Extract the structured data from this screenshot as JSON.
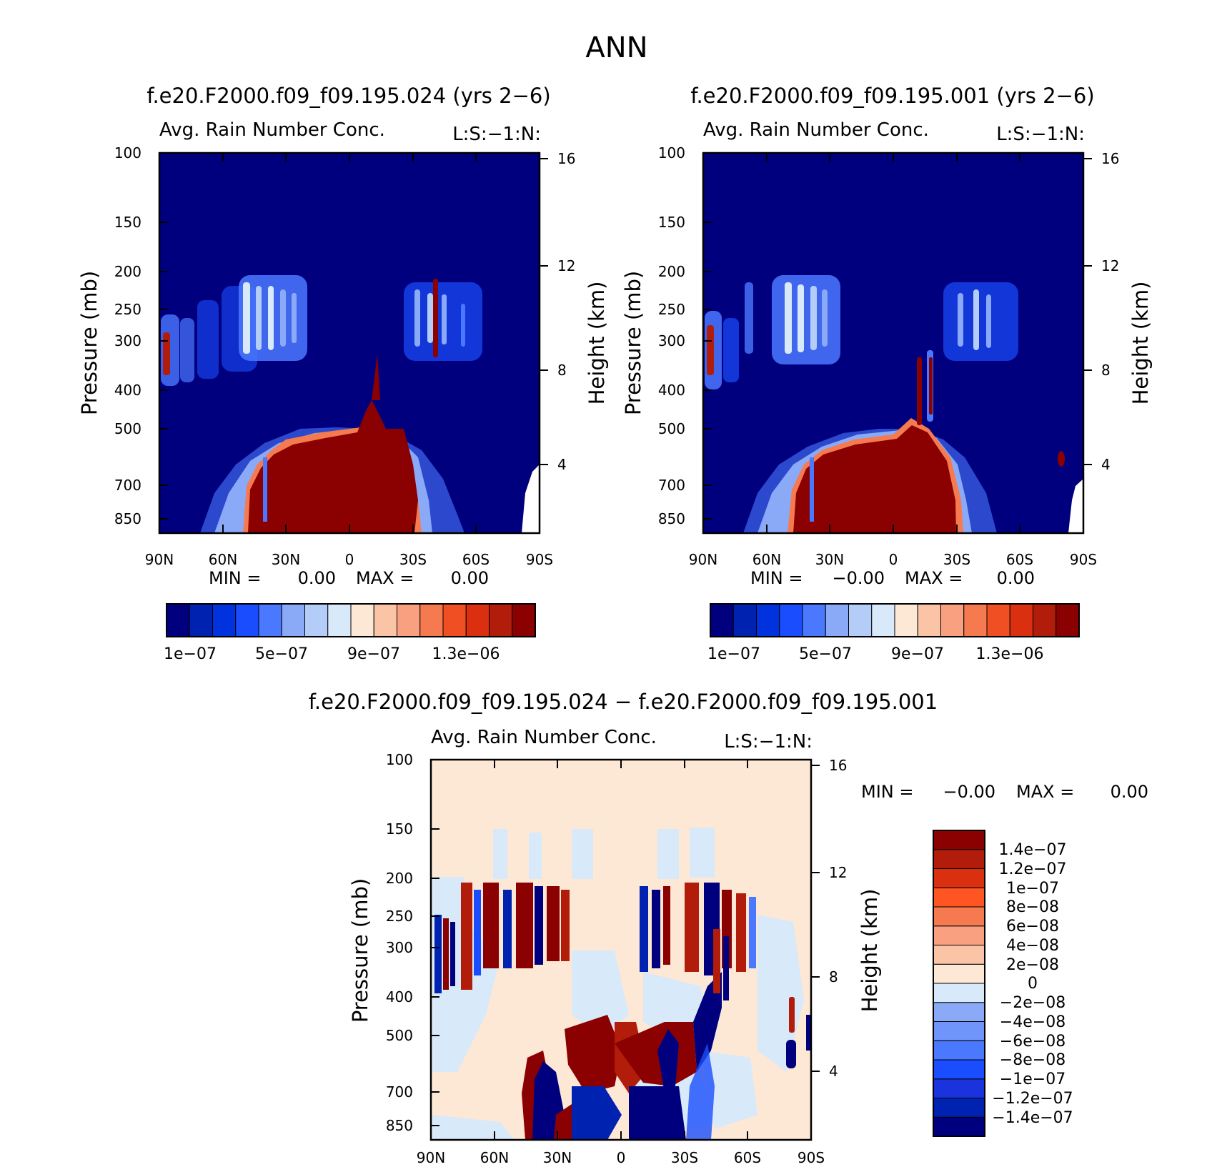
{
  "figure": {
    "title": "ANN"
  },
  "colors": {
    "field_scale": [
      "#00007f",
      "#0022b0",
      "#0033dd",
      "#1a4dfd",
      "#4a78ff",
      "#8aaaf7",
      "#b4ccf8",
      "#d8e9fa",
      "#fde8d6",
      "#fbc4a6",
      "#f8a080",
      "#f57a50",
      "#ef4f22",
      "#da3010",
      "#b21c0a",
      "#8b0000"
    ],
    "diff_scale": [
      "#00007f",
      "#0022b0",
      "#1a33dd",
      "#1a4dfd",
      "#4a78ff",
      "#6f94fa",
      "#8aaaf7",
      "#d8e9fa",
      "#fde8d6",
      "#fbc4a6",
      "#f8a080",
      "#f57a50",
      "#fe5522",
      "#da3010",
      "#b21c0a",
      "#8b0000"
    ]
  },
  "chart_data": [
    {
      "type": "heatmap",
      "title": "f.e20.F2000.f09_f09.195.024 (yrs 2−6)",
      "subtitle_left": "Avg. Rain Number Conc.",
      "subtitle_right": "L:S:−1:N:",
      "xlabel": "",
      "ylabel": "Pressure (mb)",
      "ylabel_right": "Height (km)",
      "x_ticks": [
        "90N",
        "60N",
        "30N",
        "0",
        "30S",
        "60S",
        "90S"
      ],
      "y_ticks": [
        "100",
        "150",
        "200",
        "250",
        "300",
        "400",
        "500",
        "700",
        "850"
      ],
      "y_right_ticks": [
        "16",
        "12",
        "8",
        "4"
      ],
      "min_label": "MIN =",
      "min_value": "0.00",
      "max_label": "MAX =",
      "max_value": "0.00",
      "colorbar_labels": [
        "1e−07",
        "5e−07",
        "9e−07",
        "1.3e−06"
      ]
    },
    {
      "type": "heatmap",
      "title": "f.e20.F2000.f09_f09.195.001 (yrs 2−6)",
      "subtitle_left": "Avg. Rain Number Conc.",
      "subtitle_right": "L:S:−1:N:",
      "xlabel": "",
      "ylabel": "Pressure (mb)",
      "ylabel_right": "Height (km)",
      "x_ticks": [
        "90N",
        "60N",
        "30N",
        "0",
        "30S",
        "60S",
        "90S"
      ],
      "y_ticks": [
        "100",
        "150",
        "200",
        "250",
        "300",
        "400",
        "500",
        "700",
        "850"
      ],
      "y_right_ticks": [
        "16",
        "12",
        "8",
        "4"
      ],
      "min_label": "MIN =",
      "min_value": "−0.00",
      "max_label": "MAX =",
      "max_value": "0.00",
      "colorbar_labels": [
        "1e−07",
        "5e−07",
        "9e−07",
        "1.3e−06"
      ]
    },
    {
      "type": "heatmap",
      "title": "f.e20.F2000.f09_f09.195.024 − f.e20.F2000.f09_f09.195.001",
      "subtitle_left": "Avg. Rain Number Conc.",
      "subtitle_right": "L:S:−1:N:",
      "xlabel": "",
      "ylabel": "Pressure (mb)",
      "ylabel_right": "Height (km)",
      "x_ticks": [
        "90N",
        "60N",
        "30N",
        "0",
        "30S",
        "60S",
        "90S"
      ],
      "y_ticks": [
        "100",
        "150",
        "200",
        "250",
        "300",
        "400",
        "500",
        "700",
        "850"
      ],
      "y_right_ticks": [
        "16",
        "12",
        "8",
        "4"
      ],
      "min_label": "MIN =",
      "min_value": "−0.00",
      "max_label": "MAX =",
      "max_value": "0.00",
      "colorbar_labels": [
        "1.4e−07",
        "1.2e−07",
        "1e−07",
        "8e−08",
        "6e−08",
        "4e−08",
        "2e−08",
        "0",
        "−2e−08",
        "−4e−08",
        "−6e−08",
        "−8e−08",
        "−1e−07",
        "−1.2e−07",
        "−1.4e−07"
      ]
    }
  ]
}
